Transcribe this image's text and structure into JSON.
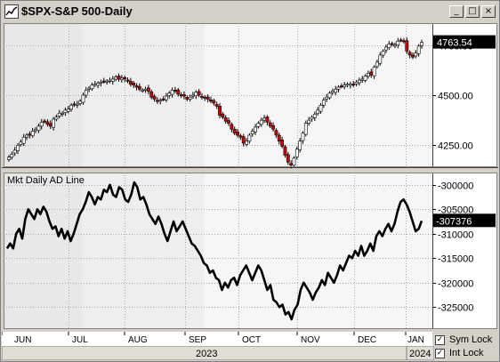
{
  "window": {
    "title": "$SPX-S&P 500-Daily",
    "buttons": [
      "_",
      "□",
      "×"
    ]
  },
  "chart_data": [
    {
      "type": "candlestick",
      "title": "$SPX-S&P 500-Daily",
      "last_value_label": "4763.54",
      "y_ticks": [
        4250,
        4500,
        4750
      ],
      "y_tick_labels": [
        "4250.00",
        "4500.00",
        "4750.00"
      ],
      "ylim": [
        4140,
        4860
      ],
      "grid": true,
      "x_labels": [
        "JUN",
        "JUL",
        "AUG",
        "SEP",
        "OCT",
        "NOV",
        "DEC",
        "JAN"
      ],
      "closes": [
        4190,
        4205,
        4225,
        4250,
        4265,
        4290,
        4300,
        4300,
        4320,
        4330,
        4345,
        4365,
        4370,
        4355,
        4345,
        4380,
        4390,
        4410,
        4410,
        4425,
        4430,
        4450,
        4455,
        4455,
        4470,
        4500,
        4525,
        4535,
        4550,
        4555,
        4560,
        4565,
        4568,
        4570,
        4575,
        4580,
        4590,
        4580,
        4585,
        4582,
        4570,
        4555,
        4550,
        4540,
        4530,
        4525,
        4530,
        4520,
        4490,
        4480,
        4470,
        4475,
        4480,
        4495,
        4510,
        4525,
        4520,
        4505,
        4500,
        4495,
        4480,
        4490,
        4500,
        4515,
        4500,
        4490,
        4485,
        4480,
        4470,
        4460,
        4445,
        4400,
        4390,
        4370,
        4360,
        4330,
        4310,
        4300,
        4290,
        4260,
        4270,
        4300,
        4320,
        4340,
        4360,
        4375,
        4385,
        4365,
        4345,
        4330,
        4300,
        4270,
        4245,
        4200,
        4165,
        4150,
        4185,
        4230,
        4270,
        4310,
        4360,
        4375,
        4390,
        4405,
        4425,
        4450,
        4475,
        4490,
        4510,
        4520,
        4530,
        4540,
        4545,
        4550,
        4555,
        4555,
        4550,
        4565,
        4575,
        4580,
        4595,
        4610,
        4600,
        4640,
        4665,
        4700,
        4720,
        4740,
        4755,
        4755,
        4750,
        4770,
        4775,
        4769,
        4720,
        4700,
        4690,
        4710,
        4745,
        4764
      ]
    },
    {
      "type": "line",
      "title": "Mkt Daily AD Line",
      "last_value_label": "-307376",
      "y_ticks": [
        -300000,
        -305000,
        -310000,
        -315000,
        -320000,
        -325000
      ],
      "ylim": [
        -329500,
        -297500
      ],
      "grid": true,
      "values": [
        -313000,
        -312000,
        -313000,
        -310000,
        -309000,
        -311000,
        -307000,
        -305000,
        -306000,
        -307000,
        -305000,
        -306000,
        -304500,
        -305500,
        -307500,
        -309000,
        -308500,
        -310500,
        -309000,
        -311000,
        -309500,
        -311500,
        -310000,
        -308000,
        -306000,
        -305000,
        -303500,
        -301500,
        -302500,
        -304000,
        -302500,
        -303000,
        -301000,
        -301500,
        -300000,
        -302000,
        -302500,
        -300500,
        -301000,
        -303000,
        -303500,
        -302000,
        -299500,
        -300500,
        -303000,
        -302500,
        -304000,
        -306000,
        -307000,
        -308000,
        -306500,
        -308000,
        -310000,
        -311500,
        -309500,
        -307500,
        -309500,
        -308500,
        -307500,
        -309000,
        -310500,
        -312000,
        -312500,
        -313500,
        -314500,
        -316000,
        -316500,
        -318000,
        -317500,
        -319000,
        -319500,
        -321500,
        -320000,
        -321000,
        -319500,
        -319000,
        -320500,
        -318500,
        -317500,
        -316500,
        -318000,
        -319500,
        -318000,
        -316500,
        -317500,
        -319500,
        -321500,
        -320500,
        -323500,
        -324000,
        -325000,
        -324500,
        -326500,
        -326000,
        -327500,
        -325500,
        -324500,
        -321500,
        -320000,
        -321000,
        -322000,
        -323500,
        -322000,
        -321000,
        -319500,
        -320500,
        -318000,
        -319000,
        -320000,
        -318500,
        -316500,
        -317500,
        -316000,
        -314500,
        -315000,
        -313500,
        -314500,
        -312500,
        -314500,
        -313500,
        -312000,
        -313500,
        -310500,
        -309500,
        -310500,
        -309000,
        -308000,
        -309500,
        -308000,
        -305500,
        -303500,
        -303000,
        -304000,
        -305500,
        -307500,
        -309500,
        -309000,
        -307376
      ]
    }
  ],
  "xaxis": {
    "months": [
      "JUN",
      "JUL",
      "AUG",
      "SEP",
      "OCT",
      "NOV",
      "DEC",
      "JAN"
    ],
    "years": [
      "2023",
      "2024"
    ]
  },
  "locks": {
    "sym_lock": "Sym Lock",
    "int_lock": "Int Lock",
    "check_mark": "✓"
  },
  "colors": {
    "up": "#ffffff",
    "down": "#cc0000",
    "line": "#000000",
    "grid": "#aaaaaa"
  }
}
